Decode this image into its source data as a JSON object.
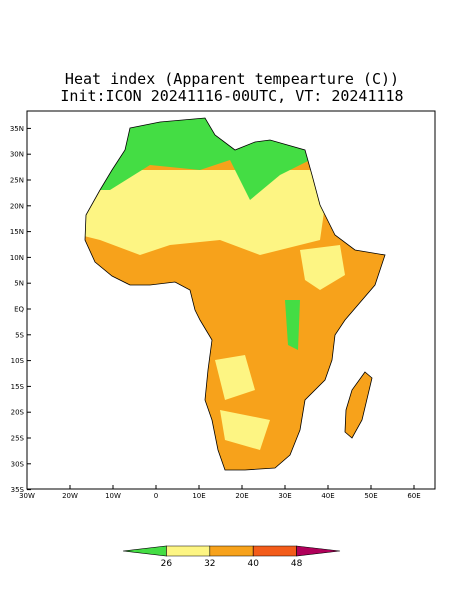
{
  "title": [
    "Heat index (Apparent tempearture (C))",
    "Init:ICON 20241116-00UTC, VT: 20241118"
  ],
  "map": {
    "lon_ticks": [
      {
        "value": -30,
        "label": "30W"
      },
      {
        "value": -20,
        "label": "20W"
      },
      {
        "value": -10,
        "label": "10W"
      },
      0,
      {
        "value": 10,
        "label": "10E"
      },
      {
        "value": 20,
        "label": "20E"
      },
      {
        "value": 30,
        "label": "30E"
      },
      {
        "value": 40,
        "label": "40E"
      },
      {
        "value": 50,
        "label": "50E"
      },
      {
        "value": 60,
        "label": "60E"
      }
    ],
    "lat_ticks": [
      {
        "value": 35,
        "label": "35N"
      },
      {
        "value": 30,
        "label": "30N"
      },
      {
        "value": 25,
        "label": "25N"
      },
      {
        "value": 20,
        "label": "20N"
      },
      {
        "value": 15,
        "label": "15N"
      },
      {
        "value": 10,
        "label": "10N"
      },
      {
        "value": 5,
        "label": "5N"
      },
      {
        "value": 0,
        "label": "EQ"
      },
      {
        "value": -5,
        "label": "5S"
      },
      {
        "value": -10,
        "label": "10S"
      },
      {
        "value": -15,
        "label": "15S"
      },
      {
        "value": -20,
        "label": "20S"
      },
      {
        "value": -25,
        "label": "25S"
      },
      {
        "value": -30,
        "label": "30S"
      },
      {
        "value": -35,
        "label": "35S"
      }
    ]
  },
  "colorbar": {
    "ticks": [
      26,
      32,
      40,
      48
    ],
    "colors": [
      "#44dd44",
      "#fdf583",
      "#f7a21b",
      "#f35c1a",
      "#b0005a"
    ]
  }
}
